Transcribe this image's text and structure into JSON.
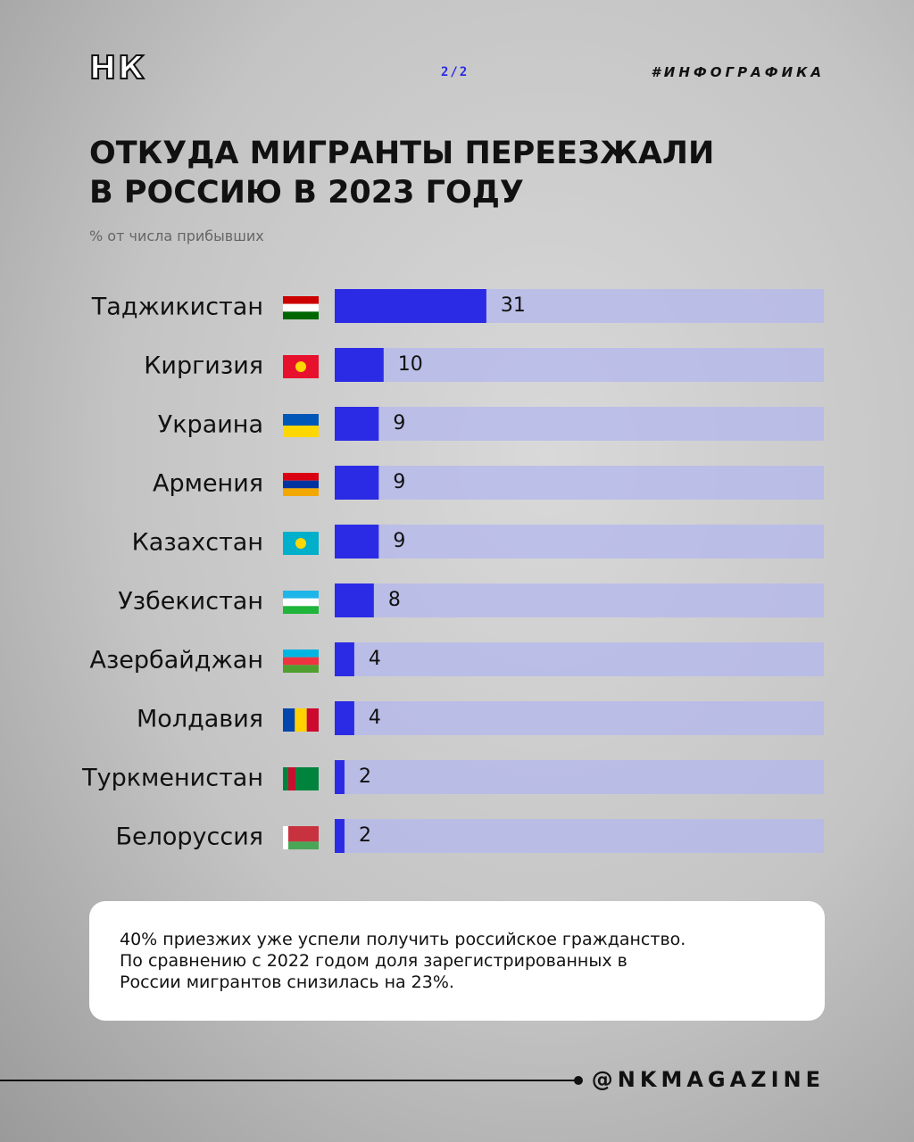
{
  "header": {
    "logo": "НК",
    "page": "2/2",
    "tag": "#ИНФОГРАФИКА"
  },
  "chart_data": {
    "type": "bar",
    "orientation": "horizontal",
    "title": [
      "ОТКУДА МИГРАНТЫ ПЕРЕЕЗЖАЛИ",
      "В РОССИЮ В 2023 ГОДУ"
    ],
    "subtitle": "% от числа прибывших",
    "categories": [
      "Таджикистан",
      "Киргизия",
      "Украина",
      "Армения",
      "Казахстан",
      "Узбекистан",
      "Азербайджан",
      "Молдавия",
      "Туркменистан",
      "Белоруссия"
    ],
    "values": [
      31,
      10,
      9,
      9,
      9,
      8,
      4,
      4,
      2,
      2
    ],
    "color": "#2b2be6",
    "xlim": [
      0,
      100
    ]
  },
  "note": [
    "40% приезжих уже успели получить российское гражданство.",
    "По сравнению с 2022 годом доля зарегистрированных в",
    "России мигрантов снизилась на 23%."
  ],
  "footer": "@NKMAGAZINE"
}
